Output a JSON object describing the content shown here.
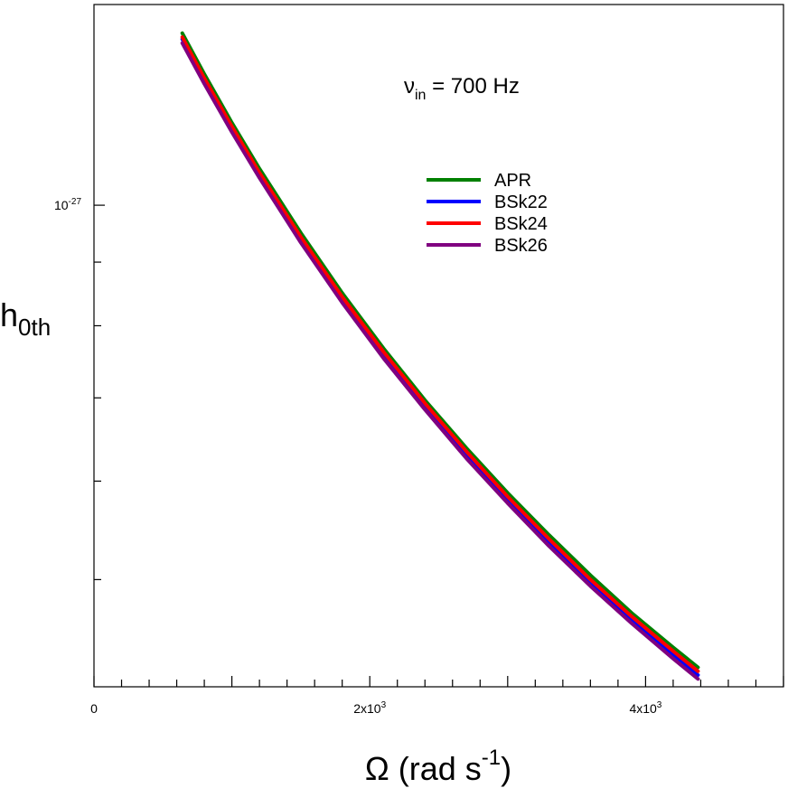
{
  "chart_data": {
    "type": "line",
    "title": "",
    "annotation": {
      "symbol": "ν",
      "subscript": "in",
      "rest": " = 700 Hz"
    },
    "xlabel": {
      "main": "Ω (rad s",
      "sup": "-1",
      "close": ")"
    },
    "ylabel": {
      "main": "h",
      "sub": "0th"
    },
    "xscale": "linear",
    "yscale": "log",
    "xlim": [
      0,
      5000
    ],
    "ylim": [
      4.1e-28,
      1.45e-27
    ],
    "x_ticks": [
      {
        "value": 0,
        "base": "0",
        "exp": ""
      },
      {
        "value": 2000,
        "base": "2x10",
        "exp": "3"
      },
      {
        "value": 4000,
        "base": "4x10",
        "exp": "3"
      }
    ],
    "y_ticks": [
      {
        "value": 1e-27,
        "base": "10",
        "exp": "-27"
      }
    ],
    "legend_position": "upper-right",
    "x": [
      640,
      800,
      1000,
      1200,
      1500,
      1800,
      2100,
      2400,
      2700,
      3000,
      3300,
      3600,
      3900,
      4200,
      4380
    ],
    "series": [
      {
        "name": "APR",
        "color": "#008000",
        "values": [
          1.375e-27,
          1.275e-27,
          1.165e-27,
          1.07e-27,
          9.5e-28,
          8.5e-28,
          7.67e-28,
          6.97e-28,
          6.38e-28,
          5.87e-28,
          5.43e-28,
          5.04e-28,
          4.7e-28,
          4.41e-28,
          4.25e-28
        ]
      },
      {
        "name": "BSk22",
        "color": "#0000ff",
        "values": [
          1.36e-27,
          1.26e-27,
          1.152e-27,
          1.058e-27,
          9.39e-28,
          8.4e-28,
          7.58e-28,
          6.89e-28,
          6.3e-28,
          5.8e-28,
          5.36e-28,
          4.97e-28,
          4.64e-28,
          4.35e-28,
          4.19e-28
        ]
      },
      {
        "name": "BSk24",
        "color": "#ff0000",
        "values": [
          1.365e-27,
          1.265e-27,
          1.157e-27,
          1.062e-27,
          9.43e-28,
          8.44e-28,
          7.62e-28,
          6.93e-28,
          6.34e-28,
          5.83e-28,
          5.39e-28,
          5e-28,
          4.67e-28,
          4.38e-28,
          4.22e-28
        ]
      },
      {
        "name": "BSk26",
        "color": "#800080",
        "values": [
          1.35e-27,
          1.252e-27,
          1.145e-27,
          1.052e-27,
          9.33e-28,
          8.35e-28,
          7.53e-28,
          6.85e-28,
          6.26e-28,
          5.76e-28,
          5.32e-28,
          4.94e-28,
          4.61e-28,
          4.32e-28,
          4.16e-28
        ]
      }
    ]
  }
}
